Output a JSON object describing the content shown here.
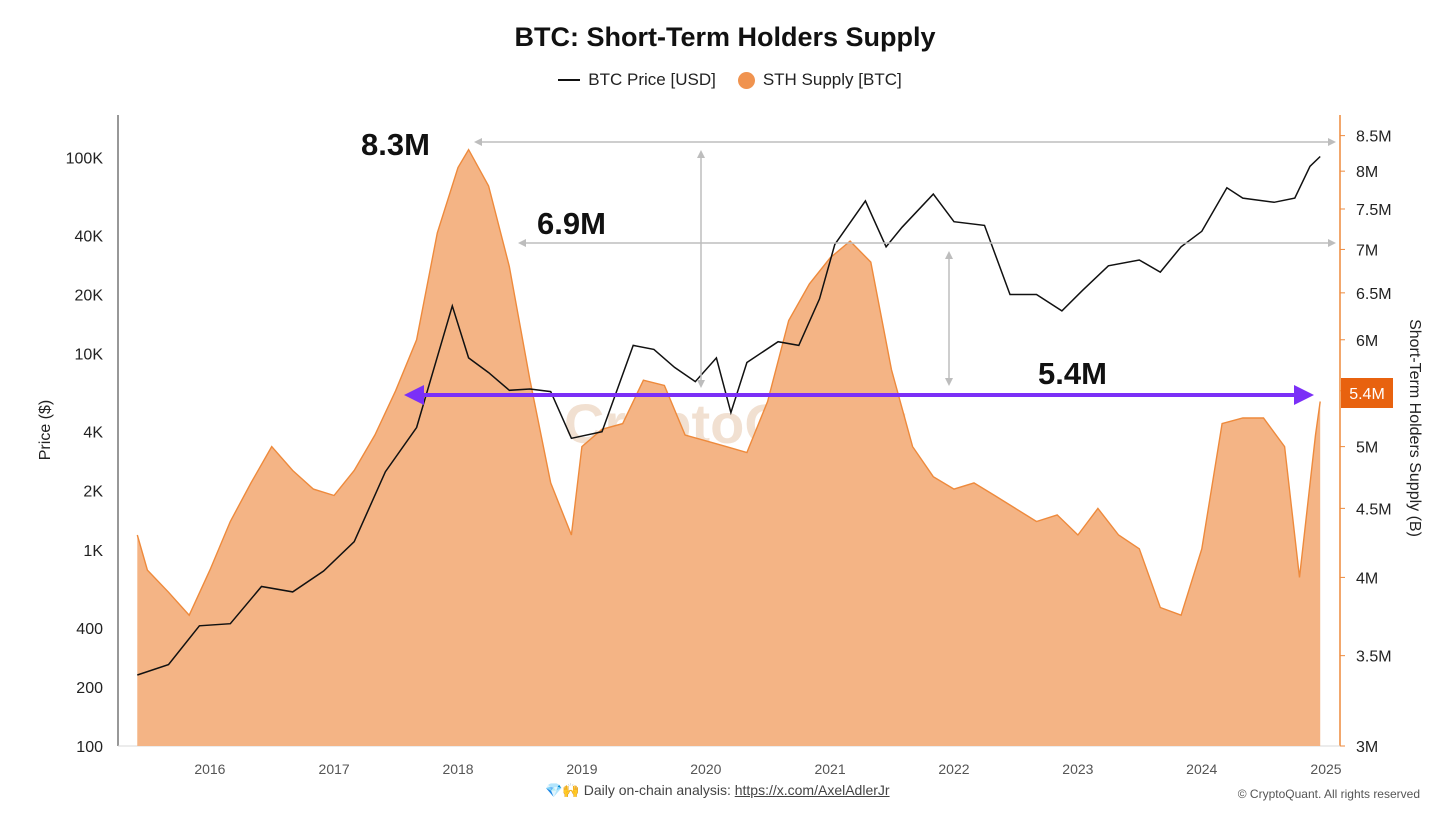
{
  "title": "BTC: Short-Term Holders Supply",
  "legend": {
    "price": "BTC Price [USD]",
    "supply": "STH Supply [BTC]"
  },
  "colors": {
    "price": "#111111",
    "supply_fill": "#f4b485",
    "supply_line": "#ee8a3c",
    "arrow": "#7b2ff7",
    "guide": "#bdbdbd",
    "badge": "#e8620f"
  },
  "watermark": "CryptoQuant",
  "footer": {
    "emoji": "💎🙌",
    "text": "Daily on-chain analysis:",
    "link": "https://x.com/AxelAdlerJr"
  },
  "copyright": "© CryptoQuant. All rights reserved",
  "annotations": {
    "peak_2018": "8.3M",
    "peak_2021": "6.9M",
    "current": "5.4M",
    "current_badge": "5.4M"
  },
  "chart_data": {
    "type": "area",
    "x_ticks": [
      "2016",
      "2017",
      "2018",
      "2019",
      "2020",
      "2021",
      "2022",
      "2023",
      "2024",
      "2025"
    ],
    "y_left": {
      "label": "Price ($)",
      "scale": "log",
      "ticks": [
        "100K",
        "40K",
        "20K",
        "10K",
        "4K",
        "2K",
        "1K",
        "400",
        "200",
        "100"
      ],
      "range": [
        100,
        130000
      ]
    },
    "y_right": {
      "label": "Short-Term Holders Supply (B)",
      "scale": "log",
      "ticks": [
        "8.5M",
        "8M",
        "7.5M",
        "7M",
        "6.5M",
        "6M",
        "5.5M",
        "5M",
        "4.5M",
        "4M",
        "3.5M",
        "3M"
      ],
      "range": [
        3000000,
        8700000
      ]
    },
    "series": [
      {
        "name": "STH Supply [BTC]",
        "type": "area",
        "x": [
          "2015-06-01",
          "2015-07-01",
          "2015-09-01",
          "2015-11-01",
          "2016-01-01",
          "2016-03-01",
          "2016-05-01",
          "2016-07-01",
          "2016-09-01",
          "2016-11-01",
          "2017-01-01",
          "2017-03-01",
          "2017-05-01",
          "2017-07-01",
          "2017-09-01",
          "2017-11-01",
          "2018-01-01",
          "2018-02-01",
          "2018-04-01",
          "2018-06-01",
          "2018-08-01",
          "2018-10-01",
          "2018-12-01",
          "2019-01-01",
          "2019-03-01",
          "2019-05-01",
          "2019-07-01",
          "2019-09-01",
          "2019-11-01",
          "2020-01-01",
          "2020-03-01",
          "2020-05-01",
          "2020-07-01",
          "2020-09-01",
          "2020-11-01",
          "2021-01-01",
          "2021-03-01",
          "2021-05-01",
          "2021-07-01",
          "2021-09-01",
          "2021-11-01",
          "2022-01-01",
          "2022-03-01",
          "2022-05-01",
          "2022-07-01",
          "2022-09-01",
          "2022-11-01",
          "2023-01-01",
          "2023-03-01",
          "2023-05-01",
          "2023-07-01",
          "2023-09-01",
          "2023-11-01",
          "2024-01-01",
          "2024-03-01",
          "2024-05-01",
          "2024-07-01",
          "2024-09-01",
          "2024-10-15",
          "2024-12-01",
          "2024-12-15"
        ],
        "values": [
          4300000,
          4050000,
          3900000,
          3750000,
          4050000,
          4400000,
          4700000,
          5000000,
          4800000,
          4650000,
          4600000,
          4800000,
          5100000,
          5500000,
          6000000,
          7200000,
          8050000,
          8300000,
          7800000,
          6800000,
          5600000,
          4700000,
          4300000,
          5000000,
          5150000,
          5200000,
          5600000,
          5550000,
          5100000,
          5050000,
          5000000,
          4950000,
          5400000,
          6200000,
          6600000,
          6900000,
          7100000,
          6850000,
          5700000,
          5000000,
          4750000,
          4650000,
          4700000,
          4600000,
          4500000,
          4400000,
          4450000,
          4300000,
          4500000,
          4300000,
          4200000,
          3800000,
          3750000,
          4200000,
          5200000,
          5250000,
          5250000,
          5000000,
          4000000,
          5100000,
          5400000
        ]
      },
      {
        "name": "BTC Price [USD]",
        "type": "line",
        "x": [
          "2015-06-01",
          "2015-09-01",
          "2015-12-01",
          "2016-03-01",
          "2016-06-01",
          "2016-09-01",
          "2016-12-01",
          "2017-03-01",
          "2017-06-01",
          "2017-09-01",
          "2017-12-15",
          "2018-02-01",
          "2018-04-01",
          "2018-06-01",
          "2018-08-01",
          "2018-10-01",
          "2018-12-01",
          "2019-03-01",
          "2019-06-01",
          "2019-08-01",
          "2019-10-01",
          "2019-12-01",
          "2020-02-01",
          "2020-03-15",
          "2020-05-01",
          "2020-08-01",
          "2020-10-01",
          "2020-12-01",
          "2021-01-15",
          "2021-04-15",
          "2021-06-15",
          "2021-08-01",
          "2021-11-01",
          "2022-01-01",
          "2022-04-01",
          "2022-06-15",
          "2022-09-01",
          "2022-11-15",
          "2023-01-15",
          "2023-04-01",
          "2023-07-01",
          "2023-09-01",
          "2023-11-01",
          "2024-01-01",
          "2024-03-15",
          "2024-05-01",
          "2024-08-01",
          "2024-10-01",
          "2024-11-15",
          "2024-12-15"
        ],
        "values": [
          230,
          260,
          410,
          420,
          650,
          610,
          780,
          1100,
          2500,
          4200,
          17500,
          9500,
          8000,
          6500,
          6600,
          6400,
          3700,
          4000,
          11000,
          10500,
          8500,
          7200,
          9500,
          5000,
          9000,
          11500,
          11000,
          19000,
          36000,
          60000,
          35000,
          44000,
          65000,
          47000,
          45000,
          20000,
          20000,
          16500,
          21000,
          28000,
          30000,
          26000,
          35000,
          42000,
          70000,
          62000,
          59000,
          62000,
          90000,
          101000
        ]
      }
    ]
  }
}
